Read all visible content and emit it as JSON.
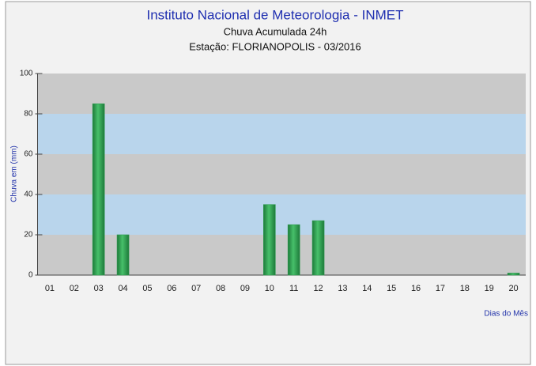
{
  "chart_data": {
    "type": "bar",
    "title": "Instituto Nacional de Meteorologia - INMET",
    "subtitle": "Chuva Acumulada 24h",
    "subtitle2": "Estação: FLORIANOPOLIS - 03/2016",
    "ylabel": "Chuva em (mm)",
    "xlabel": "Dias do Mês",
    "categories": [
      "01",
      "02",
      "03",
      "04",
      "05",
      "06",
      "07",
      "08",
      "09",
      "10",
      "11",
      "12",
      "13",
      "14",
      "15",
      "16",
      "17",
      "18",
      "19",
      "20"
    ],
    "values": [
      0,
      0,
      85,
      20,
      0,
      0,
      0,
      0,
      0,
      35,
      25,
      27,
      0,
      0,
      0,
      0,
      0,
      0,
      0,
      1
    ],
    "color": "#2e9b4e",
    "ylim": [
      0,
      100
    ],
    "yticks": [
      0,
      20,
      40,
      60,
      80,
      100
    ],
    "grid": true
  }
}
